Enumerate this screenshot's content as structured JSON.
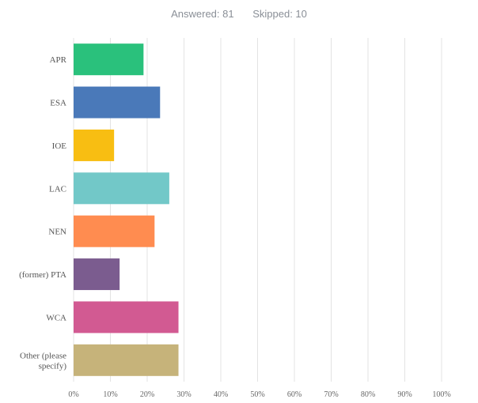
{
  "summary": {
    "answered": "Answered: 81",
    "skipped": "Skipped: 10"
  },
  "chart_data": {
    "type": "bar",
    "orientation": "horizontal",
    "categories": [
      "APR",
      "ESA",
      "IOE",
      "LAC",
      "NEN",
      "(former) PTA",
      "WCA",
      "Other (please specify)"
    ],
    "category_lines": [
      [
        "APR"
      ],
      [
        "ESA"
      ],
      [
        "IOE"
      ],
      [
        "LAC"
      ],
      [
        "NEN"
      ],
      [
        "(former) PTA"
      ],
      [
        "WCA"
      ],
      [
        "Other (please",
        "specify)"
      ]
    ],
    "values": [
      19,
      23.5,
      11,
      26,
      22,
      12.5,
      28.5,
      28.5
    ],
    "colors": [
      "#2ac17c",
      "#4a79b9",
      "#f8be12",
      "#72c8c8",
      "#ff8c50",
      "#7b5c8f",
      "#d25a92",
      "#c6b37a"
    ],
    "xlim": [
      0,
      100
    ],
    "ticks": [
      "0%",
      "10%",
      "20%",
      "30%",
      "40%",
      "50%",
      "60%",
      "70%",
      "80%",
      "90%",
      "100%"
    ],
    "grid": true,
    "xlabel": "",
    "ylabel": ""
  }
}
